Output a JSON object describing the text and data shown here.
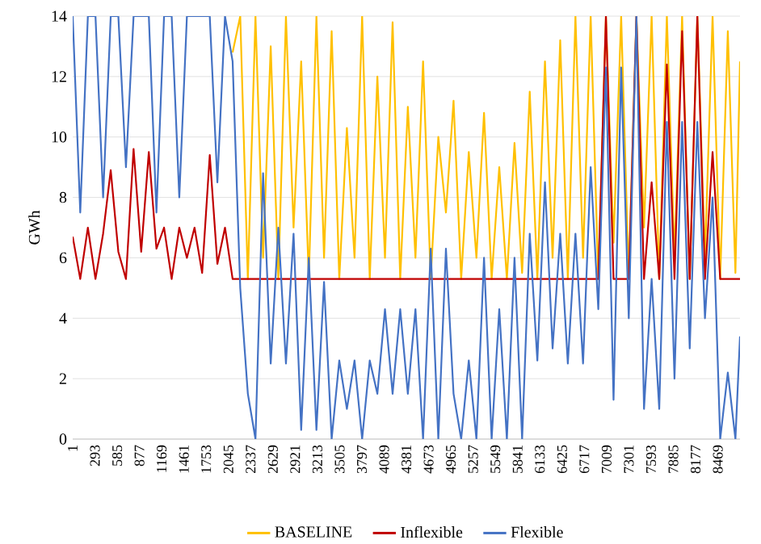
{
  "chart_data": {
    "type": "line",
    "ylabel": "GWh",
    "ylim": [
      0,
      14
    ],
    "yticks": [
      0,
      2,
      4,
      6,
      8,
      10,
      12,
      14
    ],
    "xlim": [
      1,
      8760
    ],
    "xticks": [
      1,
      293,
      585,
      877,
      1169,
      1461,
      1753,
      2045,
      2337,
      2629,
      2921,
      3213,
      3505,
      3797,
      4089,
      4381,
      4673,
      4965,
      5257,
      5549,
      5841,
      6133,
      6425,
      6717,
      7009,
      7301,
      7593,
      7885,
      8177,
      8469
    ],
    "grid": "y",
    "legend": "bottom",
    "marker": "none",
    "line_style": "solid",
    "x": [
      1,
      100,
      200,
      300,
      400,
      500,
      600,
      700,
      800,
      900,
      1000,
      1100,
      1200,
      1300,
      1400,
      1500,
      1600,
      1700,
      1800,
      1900,
      2000,
      2100,
      2200,
      2300,
      2400,
      2500,
      2600,
      2700,
      2800,
      2900,
      3000,
      3100,
      3200,
      3300,
      3400,
      3500,
      3600,
      3700,
      3800,
      3900,
      4000,
      4100,
      4200,
      4300,
      4400,
      4500,
      4600,
      4700,
      4800,
      4900,
      5000,
      5100,
      5200,
      5300,
      5400,
      5500,
      5600,
      5700,
      5800,
      5900,
      6000,
      6100,
      6200,
      6300,
      6400,
      6500,
      6600,
      6700,
      6800,
      6900,
      7000,
      7100,
      7200,
      7300,
      7400,
      7500,
      7600,
      7700,
      7800,
      7900,
      8000,
      8100,
      8200,
      8300,
      8400,
      8500,
      8600,
      8700,
      8760
    ],
    "series": [
      {
        "name": "BASELINE",
        "color": "#ffc000",
        "values": [
          null,
          null,
          null,
          null,
          null,
          null,
          null,
          null,
          null,
          null,
          null,
          null,
          null,
          null,
          null,
          null,
          null,
          null,
          null,
          null,
          null,
          12.8,
          14,
          5.3,
          14,
          6,
          13,
          5.3,
          14,
          7,
          12.5,
          5.3,
          14,
          6,
          13.5,
          5.3,
          10.3,
          6,
          14,
          5.3,
          12,
          6,
          13.8,
          5.3,
          11,
          6,
          12.5,
          5.3,
          10,
          7.5,
          11.2,
          5.3,
          9.5,
          6,
          10.8,
          5.3,
          9,
          5.3,
          9.8,
          5.5,
          11.5,
          5.3,
          12.5,
          6,
          13.2,
          5.3,
          14,
          6,
          14,
          5.3,
          14,
          6.5,
          14,
          5.3,
          14,
          7,
          14,
          5.3,
          14,
          6,
          14,
          5.3,
          14,
          6,
          14,
          5.3,
          13.5,
          5.5,
          12.5
        ]
      },
      {
        "name": "Inflexible",
        "color": "#c00000",
        "values": [
          6.7,
          5.3,
          7,
          5.3,
          6.8,
          8.9,
          6.2,
          5.3,
          9.6,
          6.2,
          9.5,
          6.3,
          7,
          5.3,
          7,
          6,
          7,
          5.5,
          9.4,
          5.8,
          7,
          5.3,
          5.3,
          5.3,
          5.3,
          5.3,
          5.3,
          5.3,
          5.3,
          5.3,
          5.3,
          5.3,
          5.3,
          5.3,
          5.3,
          5.3,
          5.3,
          5.3,
          5.3,
          5.3,
          5.3,
          5.3,
          5.3,
          5.3,
          5.3,
          5.3,
          5.3,
          5.3,
          5.3,
          5.3,
          5.3,
          5.3,
          5.3,
          5.3,
          5.3,
          5.3,
          5.3,
          5.3,
          5.3,
          5.3,
          5.3,
          5.3,
          5.3,
          5.3,
          5.3,
          5.3,
          5.3,
          5.3,
          5.3,
          5.3,
          14,
          5.3,
          5.3,
          5.3,
          14,
          5.3,
          8.5,
          5.3,
          12.4,
          5.3,
          13.5,
          5.3,
          14,
          5.3,
          9.5,
          5.3,
          5.3,
          5.3,
          5.3
        ]
      },
      {
        "name": "Flexible",
        "color": "#4472c4",
        "values": [
          14,
          7.5,
          14,
          14,
          8,
          14,
          14,
          9,
          14,
          14,
          14,
          7.5,
          14,
          14,
          8,
          14,
          14,
          14,
          14,
          8.5,
          14,
          12.5,
          5,
          1.5,
          0,
          8.8,
          2.5,
          7,
          2.5,
          6.8,
          0.3,
          6,
          0.3,
          5.2,
          0,
          2.6,
          1,
          2.6,
          0,
          2.6,
          1.5,
          4.3,
          1.5,
          4.3,
          1.5,
          4.3,
          0,
          6.3,
          0,
          6.3,
          1.5,
          0,
          2.6,
          0,
          6,
          0,
          4.3,
          0,
          6,
          0,
          6.8,
          2.6,
          8.5,
          3,
          6.8,
          2.5,
          6.8,
          2.5,
          9,
          4.3,
          12.3,
          1.3,
          12.3,
          4,
          14,
          1,
          5.3,
          1,
          10.5,
          2,
          10.5,
          3,
          10.5,
          4,
          8,
          0,
          2.2,
          0,
          3.4
        ]
      }
    ]
  }
}
